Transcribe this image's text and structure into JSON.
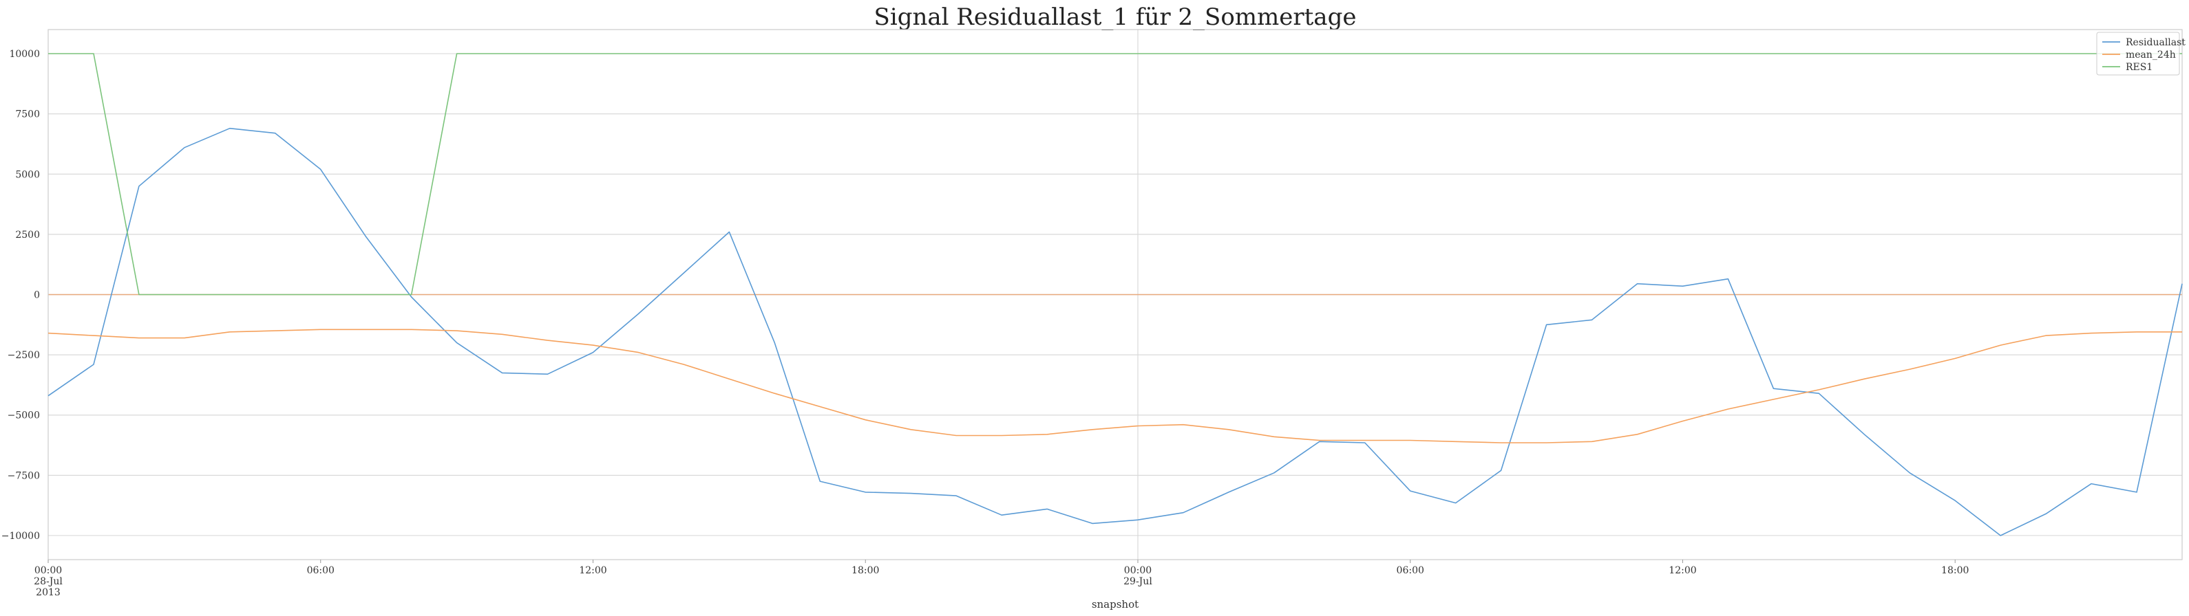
{
  "chart_data": {
    "type": "line",
    "title": "Signal Residuallast_1 für 2_Sommertage",
    "xlabel": "snapshot",
    "ylabel": "",
    "x_hours": [
      0,
      1,
      2,
      3,
      4,
      5,
      6,
      7,
      8,
      9,
      10,
      11,
      12,
      13,
      14,
      15,
      16,
      17,
      18,
      19,
      20,
      21,
      22,
      23,
      24,
      25,
      26,
      27,
      28,
      29,
      30,
      31,
      32,
      33,
      34,
      35,
      36,
      37,
      38,
      39,
      40,
      41,
      42,
      43,
      44,
      45,
      46,
      47
    ],
    "xlim": [
      0,
      47
    ],
    "ylim": [
      -11000,
      11000
    ],
    "y_ticks": [
      -10000,
      -7500,
      -5000,
      -2500,
      0,
      2500,
      5000,
      7500,
      10000
    ],
    "y_tick_labels": [
      "−10000",
      "−7500",
      "−5000",
      "−2500",
      "0",
      "2500",
      "5000",
      "7500",
      "10000"
    ],
    "x_ticks": [
      {
        "hour": 0,
        "lines": [
          "00:00",
          "28-Jul",
          "2013"
        ]
      },
      {
        "hour": 6,
        "lines": [
          "06:00"
        ]
      },
      {
        "hour": 12,
        "lines": [
          "12:00"
        ]
      },
      {
        "hour": 18,
        "lines": [
          "18:00"
        ]
      },
      {
        "hour": 24,
        "lines": [
          "00:00",
          "29-Jul"
        ]
      },
      {
        "hour": 30,
        "lines": [
          "06:00"
        ]
      },
      {
        "hour": 36,
        "lines": [
          "12:00"
        ]
      },
      {
        "hour": 42,
        "lines": [
          "18:00"
        ]
      }
    ],
    "grid": true,
    "legend_position": "top-right",
    "zero_line_color": "#e8a87c",
    "series": [
      {
        "name": "Residuallast",
        "color": "#5b9bd5",
        "values": [
          -4200,
          -2900,
          4500,
          6100,
          6900,
          6700,
          5200,
          2400,
          -100,
          -2000,
          -3250,
          -3300,
          -2400,
          -800,
          900,
          2600,
          -2000,
          -7750,
          -8200,
          -8250,
          -8350,
          -9150,
          -8900,
          -9500,
          -9350,
          -9050,
          -8200,
          -7400,
          -6100,
          -6150,
          -8150,
          -8650,
          -7300,
          -1250,
          -1050,
          450,
          350,
          650,
          -3900,
          -4100,
          -5800,
          -7400,
          -8550,
          -10000,
          -9100,
          -7850,
          -8200,
          450
        ]
      },
      {
        "name": "mean_24h",
        "color": "#f5a15c",
        "values": [
          -1600,
          -1700,
          -1800,
          -1800,
          -1550,
          -1500,
          -1450,
          -1450,
          -1450,
          -1500,
          -1650,
          -1900,
          -2100,
          -2400,
          -2900,
          -3500,
          -4100,
          -4650,
          -5200,
          -5600,
          -5850,
          -5850,
          -5800,
          -5600,
          -5450,
          -5400,
          -5600,
          -5900,
          -6050,
          -6050,
          -6050,
          -6100,
          -6150,
          -6150,
          -6100,
          -5800,
          -5250,
          -4750,
          -4350,
          -3950,
          -3500,
          -3100,
          -2650,
          -2100,
          -1700,
          -1600,
          -1550,
          -1550
        ]
      },
      {
        "name": "RES1",
        "color": "#7cc47c",
        "values": [
          10000,
          10000,
          0,
          0,
          0,
          0,
          0,
          0,
          0,
          10000,
          10000,
          10000,
          10000,
          10000,
          10000,
          10000,
          10000,
          10000,
          10000,
          10000,
          10000,
          10000,
          10000,
          10000,
          10000,
          10000,
          10000,
          10000,
          10000,
          10000,
          10000,
          10000,
          10000,
          10000,
          10000,
          10000,
          10000,
          10000,
          10000,
          10000,
          10000,
          10000,
          10000,
          10000,
          10000,
          10000,
          10000,
          10000
        ]
      }
    ]
  }
}
